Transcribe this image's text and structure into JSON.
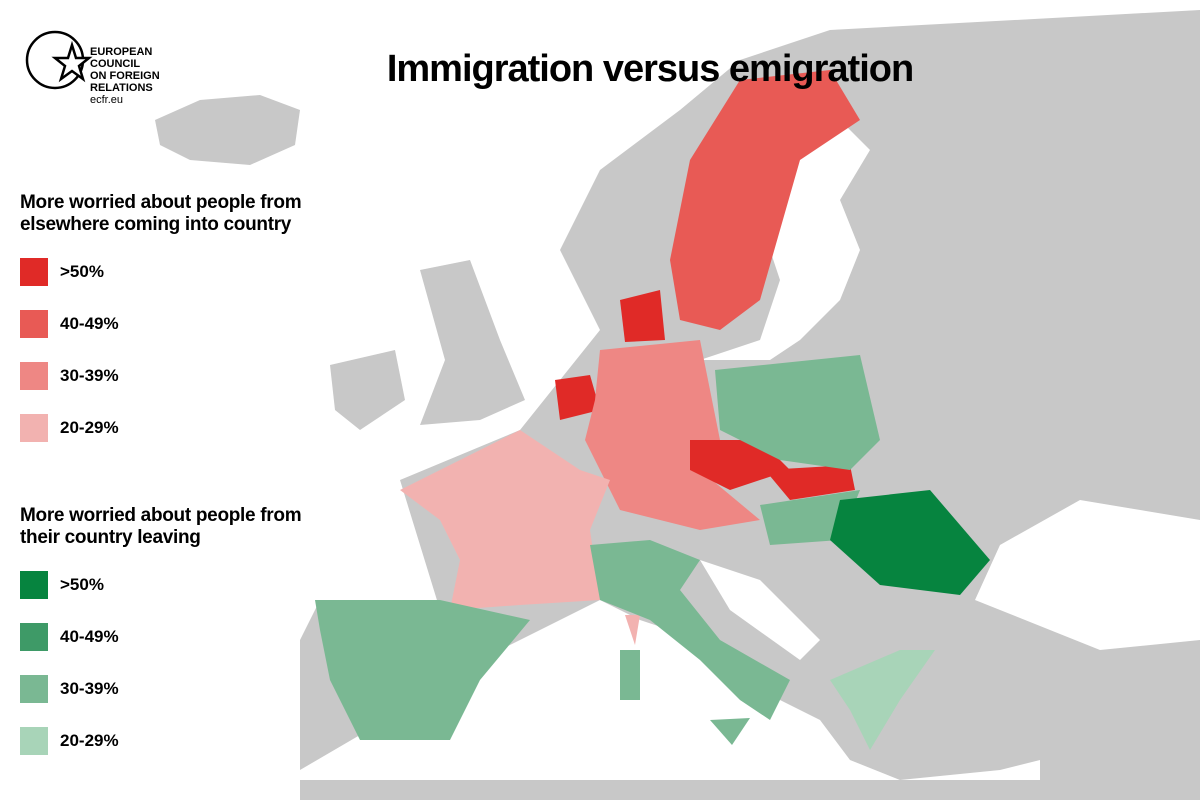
{
  "logo": {
    "lines": [
      "EUROPEAN",
      "COUNCIL",
      "ON FOREIGN",
      "RELATIONS"
    ],
    "url": "ecfr.eu"
  },
  "title": "Immigration versus emigration",
  "legend": [
    {
      "heading": "More worried about people from elsewhere coming into country",
      "items": [
        {
          "label": ">50%",
          "color": "#e02a27"
        },
        {
          "label": "40-49%",
          "color": "#e85a55"
        },
        {
          "label": "30-39%",
          "color": "#ee8784"
        },
        {
          "label": "20-29%",
          "color": "#f2b2b0"
        }
      ]
    },
    {
      "heading": "More worried about people from their country leaving",
      "items": [
        {
          "label": ">50%",
          "color": "#06843f"
        },
        {
          "label": "40-49%",
          "color": "#3e9a67"
        },
        {
          "label": "30-39%",
          "color": "#7ab893"
        },
        {
          "label": "20-29%",
          "color": "#a8d4b8"
        }
      ]
    }
  ]
}
